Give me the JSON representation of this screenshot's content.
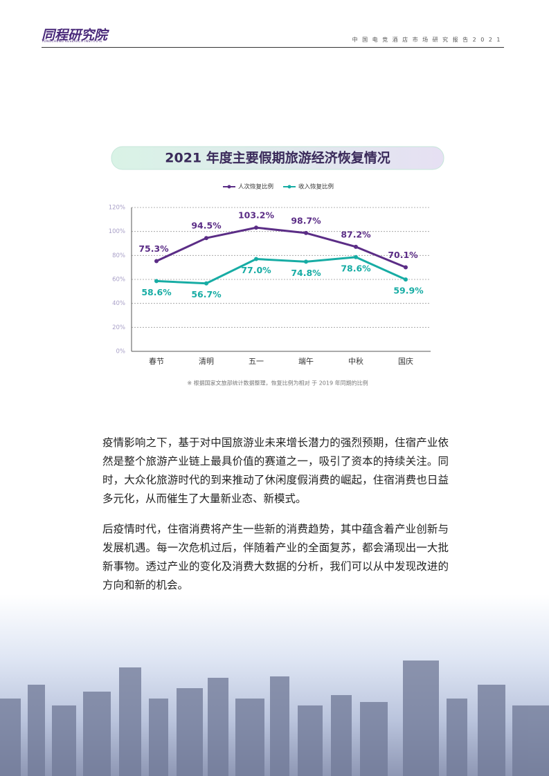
{
  "header": {
    "logo": "同程研究院",
    "logo_sub": "TONGCHENG RESEARCH INSTITUTE",
    "report": "中国电竞酒店市场研究报告2021"
  },
  "chart_data": {
    "type": "line",
    "title": "2021 年度主要假期旅游经济恢复情况",
    "categories": [
      "春节",
      "清明",
      "五一",
      "端午",
      "中秋",
      "国庆"
    ],
    "series": [
      {
        "name": "人次恢复比例",
        "color": "#5b2d86",
        "values": [
          75.3,
          94.5,
          103.2,
          98.7,
          87.2,
          70.1
        ],
        "value_labels": [
          "75.3%",
          "94.5%",
          "103.2%",
          "98.7%",
          "87.2%",
          "70.1%"
        ]
      },
      {
        "name": "收入恢复比例",
        "color": "#17aca4",
        "values": [
          58.6,
          56.7,
          77.0,
          74.8,
          78.6,
          59.9
        ],
        "value_labels": [
          "58.6%",
          "56.7%",
          "77.0%",
          "74.8%",
          "78.6%",
          "59.9%"
        ]
      }
    ],
    "ylim": [
      0,
      120
    ],
    "yticks": [
      {
        "value": 0,
        "label": "0%"
      },
      {
        "value": 20,
        "label": "20%"
      },
      {
        "value": 40,
        "label": "40%"
      },
      {
        "value": 60,
        "label": "60%"
      },
      {
        "value": 80,
        "label": "80%"
      },
      {
        "value": 100,
        "label": "100%"
      },
      {
        "value": 120,
        "label": "120%"
      }
    ],
    "grid": true,
    "legend": "top",
    "note": "※ 根据国家文旅部统计数据整理，恢复比例为相对 于 2019 年同期的比例"
  },
  "body": {
    "paragraphs": [
      "疫情影响之下，基于对中国旅游业未来增长潜力的强烈预期，住宿产业依然是整个旅游产业链上最具价值的赛道之一，吸引了资本的持续关注。同时，大众化旅游时代的到来推动了休闲度假消费的崛起，住宿消费也日益多元化，从而催生了大量新业态、新模式。",
      "后疫情时代，住宿消费将产生一些新的消费趋势，其中蕴含着产业创新与发展机遇。每一次危机过后，伴随着产业的全面复苏，都会涌现出一大批新事物。透过产业的变化及消费大数据的分析，我们可以从中发现改进的方向和新的机会。"
    ]
  }
}
